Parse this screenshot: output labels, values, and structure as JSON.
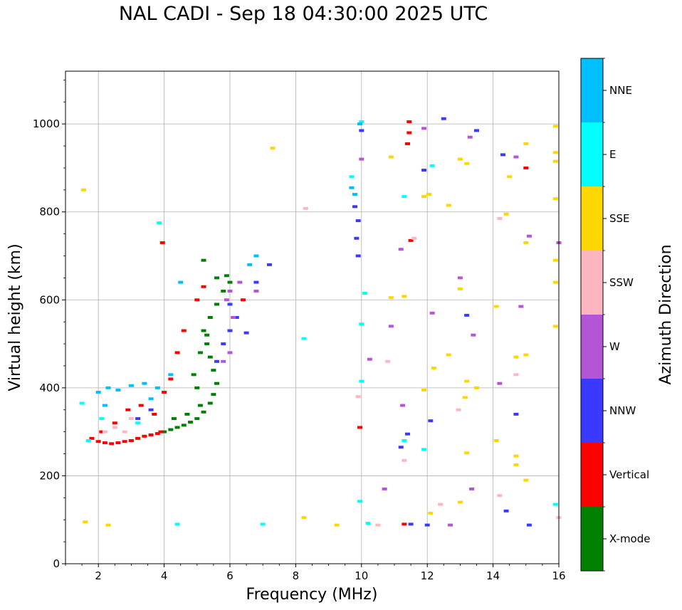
{
  "title": "NAL CADI - Sep 18 04:30:00 2025 UTC",
  "chart_data": {
    "type": "scatter",
    "title": "NAL CADI - Sep 18 04:30:00 2025 UTC",
    "xlabel": "Frequency (MHz)",
    "ylabel": "Virtual height (km)",
    "xlim": [
      1,
      16
    ],
    "ylim": [
      0,
      1120
    ],
    "xticks": [
      2,
      4,
      6,
      8,
      10,
      12,
      14,
      16
    ],
    "yticks": [
      0,
      200,
      400,
      600,
      800,
      1000
    ],
    "grid": true,
    "colorbar": {
      "label": "Azimuth Direction",
      "categories": [
        {
          "name": "X-mode",
          "color": "#008000"
        },
        {
          "name": "Vertical",
          "color": "#ff0000"
        },
        {
          "name": "NNW",
          "color": "#3a3aff"
        },
        {
          "name": "W",
          "color": "#b455d8"
        },
        {
          "name": "SSW",
          "color": "#ffb6c1"
        },
        {
          "name": "SSE",
          "color": "#ffd700"
        },
        {
          "name": "E",
          "color": "#00ffff"
        },
        {
          "name": "NNE",
          "color": "#00bfff"
        }
      ]
    },
    "series": [
      {
        "name": "X-mode",
        "points": [
          [
            4.0,
            300
          ],
          [
            4.2,
            305
          ],
          [
            4.4,
            310
          ],
          [
            4.6,
            315
          ],
          [
            4.8,
            322
          ],
          [
            5.0,
            330
          ],
          [
            5.2,
            345
          ],
          [
            5.4,
            365
          ],
          [
            5.5,
            385
          ],
          [
            5.6,
            410
          ],
          [
            5.5,
            440
          ],
          [
            5.4,
            470
          ],
          [
            5.3,
            500
          ],
          [
            5.2,
            530
          ],
          [
            5.4,
            560
          ],
          [
            5.6,
            590
          ],
          [
            5.8,
            620
          ],
          [
            6.0,
            640
          ],
          [
            4.3,
            330
          ],
          [
            4.7,
            340
          ],
          [
            5.1,
            360
          ],
          [
            5.0,
            400
          ],
          [
            4.9,
            430
          ],
          [
            5.1,
            480
          ],
          [
            5.3,
            520
          ],
          [
            5.6,
            650
          ],
          [
            5.9,
            655
          ],
          [
            5.2,
            690
          ]
        ]
      },
      {
        "name": "Vertical",
        "points": [
          [
            1.8,
            285
          ],
          [
            2.0,
            278
          ],
          [
            2.2,
            275
          ],
          [
            2.4,
            273
          ],
          [
            2.6,
            275
          ],
          [
            2.8,
            278
          ],
          [
            3.0,
            280
          ],
          [
            3.2,
            285
          ],
          [
            3.4,
            290
          ],
          [
            3.6,
            293
          ],
          [
            3.8,
            296
          ],
          [
            3.9,
            300
          ],
          [
            2.1,
            300
          ],
          [
            2.5,
            320
          ],
          [
            2.9,
            350
          ],
          [
            3.3,
            360
          ],
          [
            3.7,
            340
          ],
          [
            4.0,
            390
          ],
          [
            4.2,
            420
          ],
          [
            4.4,
            480
          ],
          [
            4.6,
            530
          ],
          [
            5.0,
            600
          ],
          [
            5.2,
            630
          ],
          [
            3.95,
            730
          ],
          [
            6.4,
            600
          ],
          [
            9.95,
            310
          ],
          [
            11.45,
            1005
          ],
          [
            11.45,
            980
          ],
          [
            11.4,
            955
          ],
          [
            11.5,
            735
          ],
          [
            11.3,
            90
          ],
          [
            15.0,
            900
          ]
        ]
      },
      {
        "name": "NNW",
        "points": [
          [
            3.2,
            330
          ],
          [
            3.6,
            350
          ],
          [
            5.6,
            460
          ],
          [
            5.8,
            500
          ],
          [
            6.0,
            530
          ],
          [
            6.2,
            560
          ],
          [
            6.0,
            590
          ],
          [
            6.5,
            525
          ],
          [
            6.8,
            640
          ],
          [
            7.2,
            680
          ],
          [
            9.8,
            812
          ],
          [
            9.9,
            780
          ],
          [
            9.85,
            740
          ],
          [
            9.9,
            700
          ],
          [
            10.0,
            985
          ],
          [
            12.5,
            1012
          ],
          [
            11.9,
            895
          ],
          [
            12.1,
            325
          ],
          [
            11.4,
            295
          ],
          [
            11.2,
            265
          ],
          [
            11.5,
            90
          ],
          [
            13.2,
            565
          ],
          [
            14.3,
            930
          ],
          [
            14.4,
            120
          ],
          [
            14.7,
            340
          ],
          [
            15.1,
            88
          ],
          [
            13.5,
            985
          ],
          [
            12.0,
            88
          ]
        ]
      },
      {
        "name": "W",
        "points": [
          [
            5.8,
            460
          ],
          [
            6.0,
            480
          ],
          [
            6.1,
            560
          ],
          [
            5.9,
            600
          ],
          [
            6.0,
            620
          ],
          [
            6.3,
            640
          ],
          [
            6.8,
            620
          ],
          [
            10.0,
            920
          ],
          [
            10.25,
            465
          ],
          [
            10.9,
            540
          ],
          [
            11.2,
            715
          ],
          [
            11.25,
            360
          ],
          [
            12.15,
            570
          ],
          [
            12.7,
            88
          ],
          [
            13.0,
            650
          ],
          [
            13.3,
            970
          ],
          [
            13.4,
            520
          ],
          [
            13.35,
            170
          ],
          [
            14.2,
            410
          ],
          [
            14.7,
            925
          ],
          [
            14.85,
            585
          ],
          [
            15.1,
            745
          ],
          [
            16.0,
            730
          ],
          [
            11.9,
            990
          ],
          [
            10.7,
            170
          ]
        ]
      },
      {
        "name": "SSW",
        "points": [
          [
            2.2,
            300
          ],
          [
            2.5,
            310
          ],
          [
            2.8,
            300
          ],
          [
            3.0,
            330
          ],
          [
            8.3,
            808
          ],
          [
            9.9,
            380
          ],
          [
            10.8,
            460
          ],
          [
            11.6,
            740
          ],
          [
            12.4,
            135
          ],
          [
            12.95,
            350
          ],
          [
            14.2,
            785
          ],
          [
            14.2,
            155
          ],
          [
            14.7,
            430
          ],
          [
            16.0,
            105
          ],
          [
            11.3,
            235
          ],
          [
            10.5,
            88
          ]
        ]
      },
      {
        "name": "SSE",
        "points": [
          [
            1.55,
            850
          ],
          [
            1.6,
            95
          ],
          [
            2.3,
            88
          ],
          [
            7.3,
            945
          ],
          [
            8.25,
            105
          ],
          [
            9.25,
            88
          ],
          [
            10.9,
            925
          ],
          [
            10.9,
            605
          ],
          [
            11.3,
            608
          ],
          [
            12.05,
            840
          ],
          [
            12.65,
            815
          ],
          [
            13.0,
            920
          ],
          [
            13.0,
            625
          ],
          [
            13.2,
            910
          ],
          [
            13.2,
            415
          ],
          [
            13.15,
            378
          ],
          [
            13.5,
            400
          ],
          [
            13.2,
            252
          ],
          [
            12.65,
            475
          ],
          [
            13.0,
            140
          ],
          [
            14.4,
            795
          ],
          [
            14.5,
            880
          ],
          [
            14.7,
            470
          ],
          [
            14.7,
            245
          ],
          [
            14.7,
            225
          ],
          [
            15.0,
            730
          ],
          [
            15.0,
            955
          ],
          [
            15.0,
            475
          ],
          [
            15.0,
            190
          ],
          [
            15.9,
            995
          ],
          [
            15.9,
            935
          ],
          [
            15.9,
            915
          ],
          [
            15.9,
            830
          ],
          [
            15.9,
            690
          ],
          [
            15.9,
            640
          ],
          [
            15.9,
            540
          ],
          [
            14.1,
            280
          ],
          [
            14.1,
            585
          ],
          [
            12.2,
            445
          ],
          [
            11.9,
            395
          ],
          [
            12.1,
            115
          ],
          [
            11.9,
            835
          ]
        ]
      },
      {
        "name": "E",
        "points": [
          [
            1.5,
            365
          ],
          [
            1.7,
            280
          ],
          [
            2.1,
            330
          ],
          [
            3.2,
            320
          ],
          [
            3.85,
            775
          ],
          [
            4.4,
            90
          ],
          [
            7.0,
            90
          ],
          [
            8.25,
            512
          ],
          [
            9.7,
            880
          ],
          [
            10.0,
            1005
          ],
          [
            10.1,
            615
          ],
          [
            10.0,
            415
          ],
          [
            9.95,
            142
          ],
          [
            10.2,
            92
          ],
          [
            11.3,
            835
          ],
          [
            11.3,
            280
          ],
          [
            11.9,
            260
          ],
          [
            12.15,
            905
          ],
          [
            15.9,
            135
          ],
          [
            10.0,
            545
          ]
        ]
      },
      {
        "name": "NNE",
        "points": [
          [
            2.0,
            390
          ],
          [
            2.3,
            400
          ],
          [
            2.6,
            395
          ],
          [
            3.0,
            405
          ],
          [
            3.4,
            410
          ],
          [
            3.8,
            400
          ],
          [
            2.2,
            360
          ],
          [
            3.6,
            375
          ],
          [
            4.2,
            430
          ],
          [
            4.5,
            640
          ],
          [
            6.6,
            680
          ],
          [
            6.8,
            700
          ],
          [
            9.7,
            855
          ],
          [
            9.95,
            1000
          ],
          [
            9.8,
            840
          ]
        ]
      }
    ]
  }
}
